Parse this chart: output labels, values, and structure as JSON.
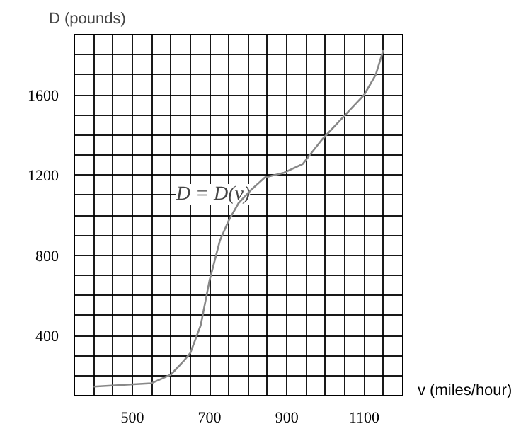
{
  "chart_data": {
    "type": "line",
    "xlabel": "v (miles/hour)",
    "ylabel": "D (pounds)",
    "x": [
      400,
      550,
      600,
      634,
      650,
      677,
      700,
      727,
      750,
      775,
      807,
      843,
      893,
      941,
      990,
      1051,
      1100,
      1130,
      1150
    ],
    "series": [
      {
        "color": "#888888",
        "values": [
          145,
          162,
          205,
          275,
          312,
          450,
          675,
          875,
          975,
          1060,
          1125,
          1188,
          1212,
          1255,
          1375,
          1500,
          1600,
          1700,
          1825
        ]
      }
    ],
    "xlim": [
      350,
      1200
    ],
    "ylim": [
      100,
      1900
    ],
    "xticks": [
      {
        "value": 350,
        "label": null
      },
      {
        "value": 400,
        "label": null
      },
      {
        "value": 450,
        "label": null
      },
      500,
      {
        "value": 550,
        "label": null
      },
      {
        "value": 600,
        "label": null
      },
      {
        "value": 650,
        "label": null
      },
      700,
      {
        "value": 750,
        "label": null
      },
      {
        "value": 800,
        "label": null
      },
      {
        "value": 850,
        "label": null
      },
      900,
      {
        "value": 950,
        "label": null
      },
      {
        "value": 1000,
        "label": null
      },
      {
        "value": 1050,
        "label": null
      },
      1100,
      {
        "value": 1150,
        "label": null
      },
      {
        "value": 1200,
        "label": null
      }
    ],
    "yticks": [
      {
        "value": 100,
        "label": null
      },
      {
        "value": 200,
        "label": null
      },
      {
        "value": 300,
        "label": null
      },
      400,
      {
        "value": 500,
        "label": null
      },
      {
        "value": 600,
        "label": null
      },
      {
        "value": 700,
        "label": null
      },
      800,
      {
        "value": 900,
        "label": null
      },
      {
        "value": 1000,
        "label": null
      },
      {
        "value": 1100,
        "label": null
      },
      1200,
      {
        "value": 1300,
        "label": null
      },
      {
        "value": 1400,
        "label": null
      },
      {
        "value": 1500,
        "label": null
      },
      1600,
      {
        "value": 1700,
        "label": null
      },
      {
        "value": 1800,
        "label": null
      },
      {
        "value": 1900,
        "label": null
      }
    ],
    "grid": true,
    "marker": "none",
    "line_style": "solid",
    "annotations": [
      "D = D(v)"
    ]
  }
}
